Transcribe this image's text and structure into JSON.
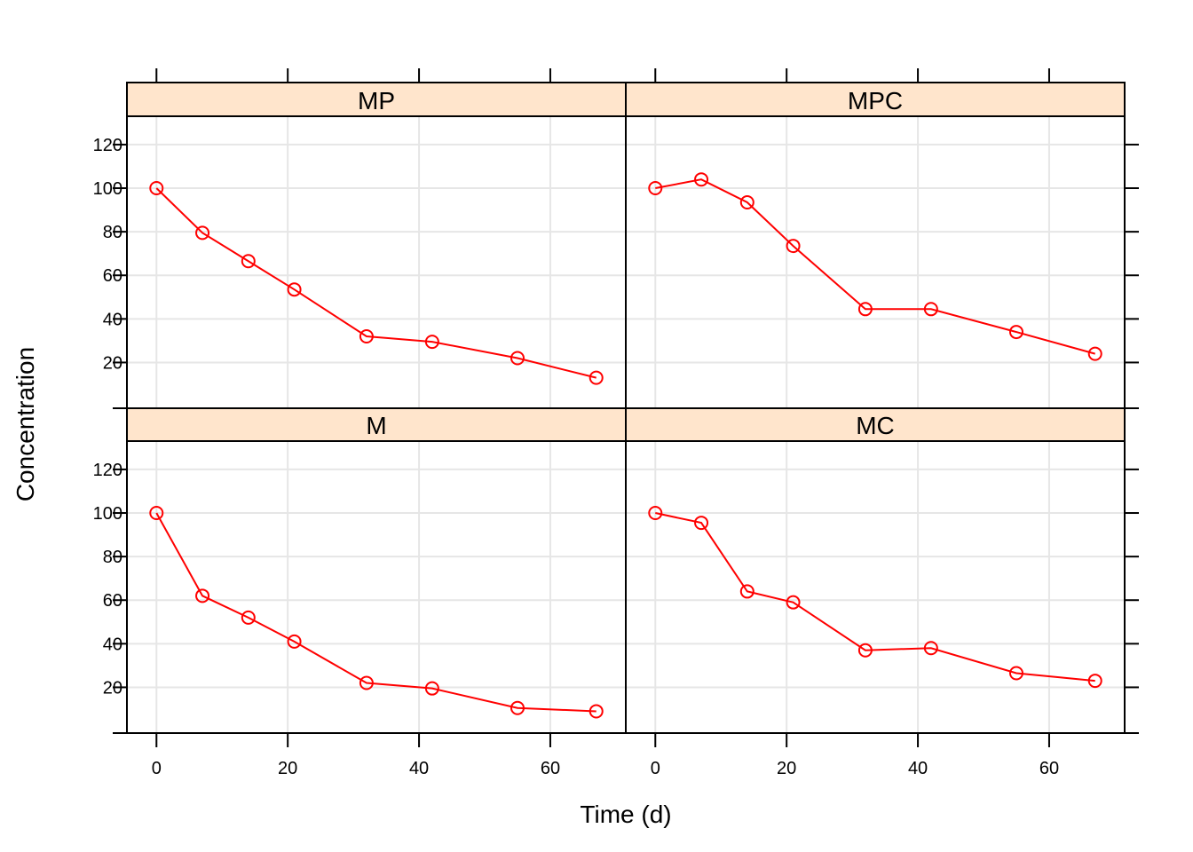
{
  "chart_data": {
    "type": "line",
    "xlabel": "Time (d)",
    "ylabel": "Concentration",
    "xlim": [
      -4.5,
      71.5
    ],
    "ylim": [
      -1,
      133
    ],
    "x_ticks": [
      "0",
      "20",
      "40",
      "60"
    ],
    "y_ticks": [
      "20",
      "40",
      "60",
      "80",
      "100",
      "120"
    ],
    "grid": true,
    "colors": {
      "series": "#ff0000",
      "strip_fill": "#ffe5cc",
      "grid": "#e6e6e6",
      "frame": "#000000"
    },
    "x": [
      0,
      7,
      14,
      21,
      32,
      42,
      55,
      67
    ],
    "panels": [
      {
        "name": "MP",
        "values": [
          100,
          79.5,
          66.5,
          53.5,
          32,
          29.5,
          22,
          13
        ]
      },
      {
        "name": "MPC",
        "values": [
          100,
          104,
          93.5,
          73.5,
          44.5,
          44.5,
          34,
          24
        ]
      },
      {
        "name": "M",
        "values": [
          100,
          62,
          52,
          41,
          22,
          19.5,
          10.5,
          9
        ]
      },
      {
        "name": "MC",
        "values": [
          100,
          95.5,
          64,
          59,
          37,
          38,
          26.5,
          23
        ]
      }
    ]
  }
}
